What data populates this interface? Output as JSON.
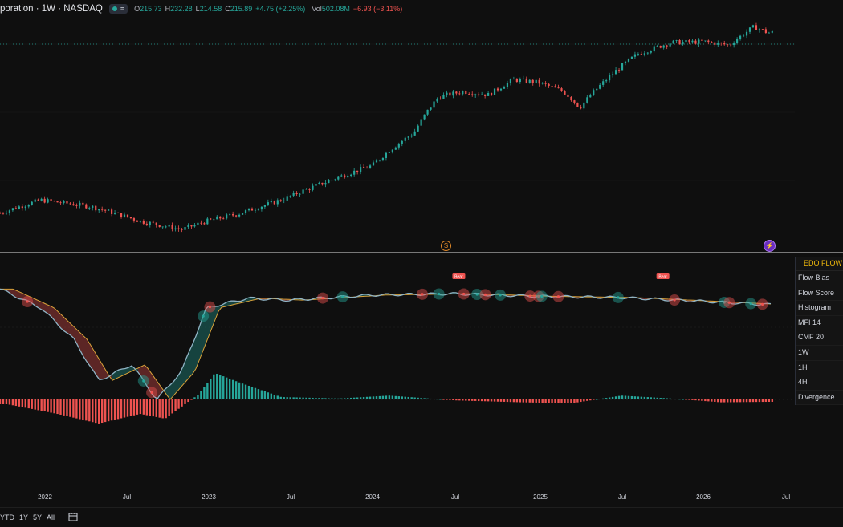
{
  "header": {
    "symbol": "poration · 1W · NASDAQ",
    "status_dot_color": "#26a69a",
    "eq_icon": "equals-icon",
    "open_label": "O",
    "open": "215.73",
    "high_label": "H",
    "high": "232.28",
    "low_label": "L",
    "low": "214.58",
    "close_label": "C",
    "close": "215.89",
    "change": "+4.75 (+2.25%)",
    "vol_label": "Vol",
    "vol": "502.08M",
    "vol_change": "−6.93 (−3.11%)"
  },
  "markers": {
    "dividend": "S",
    "flash": "⚡"
  },
  "indicator_legend": {
    "title": "EDO FLOW",
    "items": [
      "Flow Bias",
      "Flow Score",
      "Histogram",
      "MFI 14",
      "CMF 20",
      "1W",
      "1H",
      "4H",
      "Divergence"
    ]
  },
  "x_axis": {
    "labels": [
      "2022",
      "Jul",
      "2023",
      "Jul",
      "2024",
      "Jul",
      "2025",
      "Jul",
      "2026",
      "Jul"
    ]
  },
  "range_bar": {
    "items": [
      "YTD",
      "1Y",
      "5Y",
      "All"
    ],
    "calendar_icon": "calendar-range-icon"
  },
  "signals": {
    "bear_label": "Bear"
  },
  "colors": {
    "up": "#26a69a",
    "down": "#ef5350",
    "flow_line": "#8fb3c4",
    "signal_line": "#d9a33a",
    "background": "#0f0f0f"
  },
  "chart_data": {
    "type": "line",
    "price_path_weekly_approx": [
      [
        2021.75,
        11
      ],
      [
        2022.0,
        13
      ],
      [
        2022.3,
        12
      ],
      [
        2022.6,
        10
      ],
      [
        2022.85,
        9
      ],
      [
        2023.0,
        10
      ],
      [
        2023.2,
        11
      ],
      [
        2023.45,
        13
      ],
      [
        2023.7,
        16
      ],
      [
        2024.0,
        20
      ],
      [
        2024.25,
        30
      ],
      [
        2024.4,
        47
      ],
      [
        2024.55,
        50
      ],
      [
        2024.7,
        48
      ],
      [
        2024.85,
        58
      ],
      [
        2025.0,
        56
      ],
      [
        2025.15,
        50
      ],
      [
        2025.25,
        41
      ],
      [
        2025.4,
        57
      ],
      [
        2025.6,
        80
      ],
      [
        2025.8,
        92
      ],
      [
        2026.0,
        93
      ],
      [
        2026.15,
        89
      ],
      [
        2026.3,
        112
      ],
      [
        2026.38,
        104
      ]
    ],
    "flow_score_approx": [
      [
        2021.75,
        0.9
      ],
      [
        2022.0,
        0.6
      ],
      [
        2022.2,
        0.1
      ],
      [
        2022.35,
        -0.55
      ],
      [
        2022.55,
        -0.3
      ],
      [
        2022.7,
        -0.85
      ],
      [
        2022.85,
        -0.4
      ],
      [
        2023.0,
        0.6
      ],
      [
        2023.25,
        0.75
      ],
      [
        2023.5,
        0.72
      ],
      [
        2024.0,
        0.8
      ],
      [
        2024.5,
        0.82
      ],
      [
        2025.0,
        0.78
      ],
      [
        2025.5,
        0.76
      ],
      [
        2026.0,
        0.7
      ],
      [
        2026.38,
        0.65
      ]
    ],
    "histogram_approx": [
      [
        2021.8,
        -0.1
      ],
      [
        2022.1,
        -0.3
      ],
      [
        2022.35,
        -0.5
      ],
      [
        2022.6,
        -0.3
      ],
      [
        2022.75,
        -0.4
      ],
      [
        2022.95,
        0.1
      ],
      [
        2023.05,
        0.55
      ],
      [
        2023.2,
        0.35
      ],
      [
        2023.45,
        0.05
      ],
      [
        2023.8,
        0.02
      ],
      [
        2024.1,
        0.08
      ],
      [
        2024.5,
        -0.02
      ],
      [
        2024.9,
        -0.06
      ],
      [
        2025.2,
        -0.08
      ],
      [
        2025.5,
        0.08
      ],
      [
        2025.8,
        0.02
      ],
      [
        2026.1,
        -0.06
      ],
      [
        2026.38,
        -0.05
      ]
    ]
  }
}
